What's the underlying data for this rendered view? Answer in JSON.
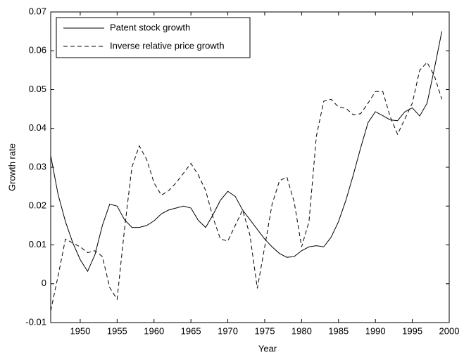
{
  "chart_data": {
    "type": "line",
    "xlabel": "Year",
    "ylabel": "Growth rate",
    "x": [
      1946,
      1947,
      1948,
      1949,
      1950,
      1951,
      1952,
      1953,
      1954,
      1955,
      1956,
      1957,
      1958,
      1959,
      1960,
      1961,
      1962,
      1963,
      1964,
      1965,
      1966,
      1967,
      1968,
      1969,
      1970,
      1971,
      1972,
      1973,
      1974,
      1975,
      1976,
      1977,
      1978,
      1979,
      1980,
      1981,
      1982,
      1983,
      1984,
      1985,
      1986,
      1987,
      1988,
      1989,
      1990,
      1991,
      1992,
      1993,
      1994,
      1995,
      1996,
      1997,
      1998,
      1999
    ],
    "series": [
      {
        "name": "Patent stock growth",
        "color": "#000000",
        "dash": "solid",
        "values": [
          0.033,
          0.023,
          0.016,
          0.0105,
          0.0062,
          0.0032,
          0.0075,
          0.015,
          0.0205,
          0.02,
          0.0165,
          0.0145,
          0.0145,
          0.015,
          0.0162,
          0.018,
          0.019,
          0.0195,
          0.02,
          0.0195,
          0.0163,
          0.0145,
          0.0178,
          0.0215,
          0.0238,
          0.0225,
          0.019,
          0.0165,
          0.014,
          0.0115,
          0.0095,
          0.0078,
          0.0068,
          0.007,
          0.0085,
          0.0095,
          0.0098,
          0.0095,
          0.012,
          0.016,
          0.0215,
          0.028,
          0.035,
          0.0415,
          0.0443,
          0.0433,
          0.0422,
          0.042,
          0.0443,
          0.0453,
          0.0432,
          0.0465,
          0.0555,
          0.065
        ]
      },
      {
        "name": "Inverse relative price growth",
        "color": "#000000",
        "dash": "dashed",
        "values": [
          -0.007,
          0.002,
          0.0115,
          0.0105,
          0.0095,
          0.008,
          0.0085,
          0.007,
          -0.001,
          -0.004,
          0.014,
          0.03,
          0.0355,
          0.032,
          0.026,
          0.0228,
          0.024,
          0.026,
          0.0285,
          0.031,
          0.028,
          0.024,
          0.017,
          0.0115,
          0.011,
          0.015,
          0.019,
          0.0125,
          -0.0012,
          0.0095,
          0.0205,
          0.0265,
          0.0275,
          0.021,
          0.0095,
          0.016,
          0.038,
          0.047,
          0.0475,
          0.0455,
          0.0452,
          0.0435,
          0.0438,
          0.0465,
          0.0495,
          0.0495,
          0.043,
          0.0385,
          0.0425,
          0.0465,
          0.055,
          0.057,
          0.0535,
          0.0475
        ]
      }
    ],
    "xlim": [
      1946,
      2000
    ],
    "xticks": [
      1950,
      1955,
      1960,
      1965,
      1970,
      1975,
      1980,
      1985,
      1990,
      1995,
      2000
    ],
    "ylim": [
      -0.01,
      0.07
    ],
    "yticks": [
      -0.01,
      0,
      0.01,
      0.02,
      0.03,
      0.04,
      0.05,
      0.06,
      0.07
    ],
    "grid": false,
    "legend": "upper left"
  }
}
